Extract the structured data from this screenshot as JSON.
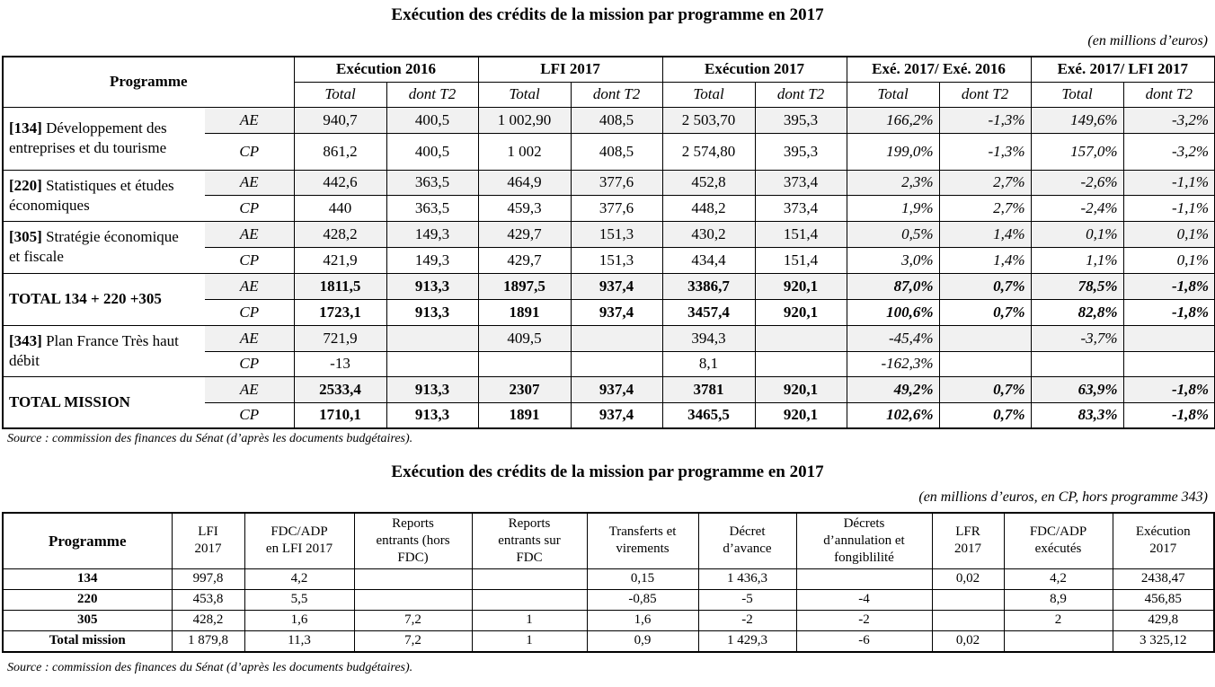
{
  "table1": {
    "title": "Exécution des crédits de la mission par programme en 2017",
    "unit": "(en millions d’euros)",
    "header": {
      "programme": "Programme",
      "groups": [
        "Exécution 2016",
        "LFI 2017",
        "Exécution 2017",
        "Exé. 2017/ Exé. 2016",
        "Exé. 2017/ LFI 2017"
      ],
      "subheaders": [
        "Total",
        "dont T2",
        "Total",
        "dont T2",
        "Total",
        "dont T2",
        "Total",
        "dont T2",
        "Total",
        "dont T2"
      ]
    },
    "programs": [
      {
        "code": "[134]",
        "name": "Développement des entreprises et du tourisme",
        "bold": false,
        "rows": [
          {
            "kind": "AE",
            "cells": [
              "940,7",
              "400,5",
              "1 002,90",
              "408,5",
              "2 503,70",
              "395,3",
              "166,2%",
              "-1,3%",
              "149,6%",
              "-3,2%"
            ]
          },
          {
            "kind": "CP",
            "cells": [
              "861,2",
              "400,5",
              "1 002",
              "408,5",
              "2 574,80",
              "395,3",
              "199,0%",
              "-1,3%",
              "157,0%",
              "-3,2%"
            ]
          }
        ]
      },
      {
        "code": "[220]",
        "name": "Statistiques et études économiques",
        "bold": false,
        "rows": [
          {
            "kind": "AE",
            "cells": [
              "442,6",
              "363,5",
              "464,9",
              "377,6",
              "452,8",
              "373,4",
              "2,3%",
              "2,7%",
              "-2,6%",
              "-1,1%"
            ]
          },
          {
            "kind": "CP",
            "cells": [
              "440",
              "363,5",
              "459,3",
              "377,6",
              "448,2",
              "373,4",
              "1,9%",
              "2,7%",
              "-2,4%",
              "-1,1%"
            ]
          }
        ]
      },
      {
        "code": "[305]",
        "name": "Stratégie économique et fiscale",
        "bold": false,
        "rows": [
          {
            "kind": "AE",
            "cells": [
              "428,2",
              "149,3",
              "429,7",
              "151,3",
              "430,2",
              "151,4",
              "0,5%",
              "1,4%",
              "0,1%",
              "0,1%"
            ]
          },
          {
            "kind": "CP",
            "cells": [
              "421,9",
              "149,3",
              "429,7",
              "151,3",
              "434,4",
              "151,4",
              "3,0%",
              "1,4%",
              "1,1%",
              "0,1%"
            ]
          }
        ]
      },
      {
        "name": "TOTAL 134 + 220 +305",
        "bold": true,
        "rows": [
          {
            "kind": "AE",
            "cells": [
              "1811,5",
              "913,3",
              "1897,5",
              "937,4",
              "3386,7",
              "920,1",
              "87,0%",
              "0,7%",
              "78,5%",
              "-1,8%"
            ]
          },
          {
            "kind": "CP",
            "cells": [
              "1723,1",
              "913,3",
              "1891",
              "937,4",
              "3457,4",
              "920,1",
              "100,6%",
              "0,7%",
              "82,8%",
              "-1,8%"
            ]
          }
        ]
      },
      {
        "code": "[343]",
        "name": "Plan France Très haut débit",
        "bold": false,
        "rows": [
          {
            "kind": "AE",
            "cells": [
              "721,9",
              null,
              "409,5",
              null,
              "394,3",
              null,
              "-45,4%",
              null,
              "-3,7%",
              null
            ]
          },
          {
            "kind": "CP",
            "cells": [
              "-13",
              null,
              null,
              null,
              "8,1",
              null,
              "-162,3%",
              null,
              null,
              null
            ]
          }
        ]
      },
      {
        "name": "TOTAL MISSION",
        "bold": true,
        "rows": [
          {
            "kind": "AE",
            "cells": [
              "2533,4",
              "913,3",
              "2307",
              "937,4",
              "3781",
              "920,1",
              "49,2%",
              "0,7%",
              "63,9%",
              "-1,8%"
            ]
          },
          {
            "kind": "CP",
            "cells": [
              "1710,1",
              "913,3",
              "1891",
              "937,4",
              "3465,5",
              "920,1",
              "102,6%",
              "0,7%",
              "83,3%",
              "-1,8%"
            ]
          }
        ]
      }
    ],
    "source": "Source : commission des finances du Sénat (d’après les documents budgétaires)."
  },
  "table2": {
    "title": "Exécution des crédits de la mission par programme en 2017",
    "unit": "(en millions d’euros, en CP, hors programme 343)",
    "headers": [
      "Programme",
      "LFI\n2017",
      "FDC/ADP\nen LFI 2017",
      "Reports\nentrants (hors\nFDC)",
      "Reports\nentrants sur\nFDC",
      "Transferts et\nvirements",
      "Décret\nd’avance",
      "Décrets\nd’annulation et\nfongiblilité",
      "LFR\n2017",
      "FDC/ADP\nexécutés",
      "Exécution\n2017"
    ],
    "rows": [
      {
        "label": "134",
        "cells": [
          "997,8",
          "4,2",
          null,
          null,
          "0,15",
          "1 436,3",
          null,
          "0,02",
          "4,2",
          "2438,47"
        ]
      },
      {
        "label": "220",
        "cells": [
          "453,8",
          "5,5",
          null,
          null,
          "-0,85",
          "-5",
          "-4",
          null,
          "8,9",
          "456,85"
        ]
      },
      {
        "label": "305",
        "cells": [
          "428,2",
          "1,6",
          "7,2",
          "1",
          "1,6",
          "-2",
          "-2",
          null,
          "2",
          "429,8"
        ]
      },
      {
        "label": "Total mission",
        "cells": [
          "1 879,8",
          "11,3",
          "7,2",
          "1",
          "0,9",
          "1 429,3",
          "-6",
          "0,02",
          null,
          "3 325,12"
        ]
      }
    ],
    "source": "Source : commission des finances du Sénat (d’après les documents budgétaires)."
  }
}
